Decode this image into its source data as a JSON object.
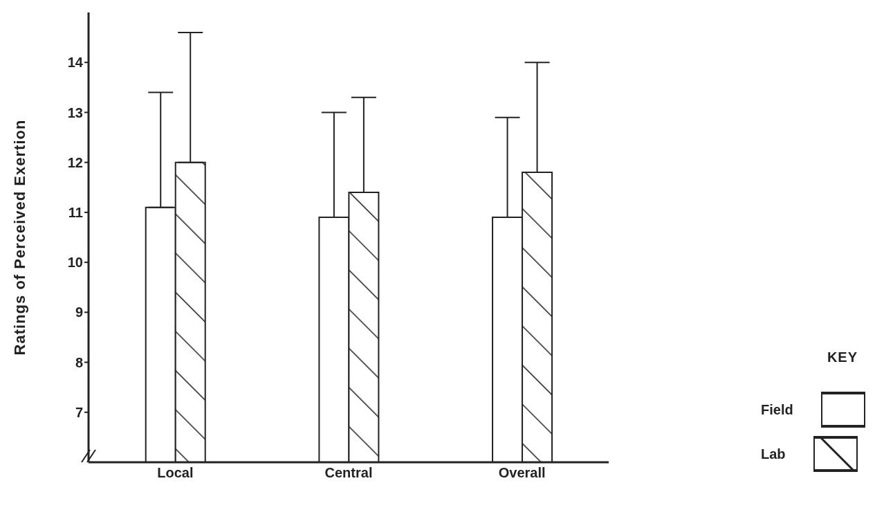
{
  "chart_data": {
    "type": "bar",
    "ylabel": "Ratings of Perceived Exertion",
    "categories": [
      "Local",
      "Central",
      "Overall"
    ],
    "series": [
      {
        "name": "Field",
        "color": "#ffffff",
        "values": [
          11.1,
          10.9,
          10.9
        ],
        "errors": [
          [
            11.1,
            13.4
          ],
          [
            10.9,
            13.0
          ],
          [
            10.9,
            12.9
          ]
        ]
      },
      {
        "name": "Lab",
        "color": "#222222",
        "values": [
          12.0,
          11.4,
          11.8
        ],
        "errors": [
          [
            12.0,
            14.6
          ],
          [
            11.4,
            13.3
          ],
          [
            11.8,
            14.0
          ]
        ]
      }
    ],
    "ylim": [
      6,
      15
    ],
    "yticks": [
      7,
      8,
      9,
      10,
      11,
      12,
      13,
      14
    ],
    "legend": "right",
    "legend_title": "KEY"
  }
}
